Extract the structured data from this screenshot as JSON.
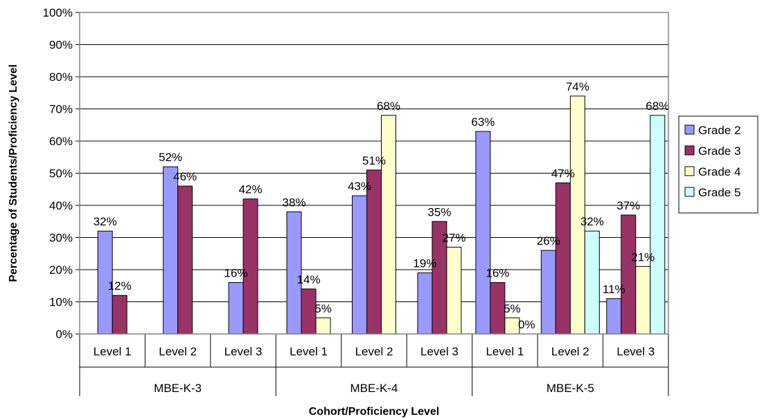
{
  "chart_data": {
    "type": "bar",
    "xlabel": "Cohort/Proficiency Level",
    "ylabel": "Percentage of Students/Proficiency Level",
    "ylim": [
      0,
      100
    ],
    "yticks": [
      "0%",
      "10%",
      "20%",
      "30%",
      "40%",
      "50%",
      "60%",
      "70%",
      "80%",
      "90%",
      "100%"
    ],
    "grid": true,
    "legend_position": "right",
    "groups": [
      {
        "cohort": "MBE-K-3",
        "levels": [
          "Level 1",
          "Level 2",
          "Level 3"
        ],
        "series": [
          {
            "name": "Grade 2",
            "values": [
              32,
              52,
              16
            ],
            "labels": [
              "32%",
              "52%",
              "16%"
            ]
          },
          {
            "name": "Grade 3",
            "values": [
              12,
              46,
              42
            ],
            "labels": [
              "12%",
              "46%",
              "42%"
            ]
          }
        ]
      },
      {
        "cohort": "MBE-K-4",
        "levels": [
          "Level 1",
          "Level 2",
          "Level 3"
        ],
        "series": [
          {
            "name": "Grade 2",
            "values": [
              38,
              43,
              19
            ],
            "labels": [
              "38%",
              "43%",
              "19%"
            ]
          },
          {
            "name": "Grade 3",
            "values": [
              14,
              51,
              35
            ],
            "labels": [
              "14%",
              "51%",
              "35%"
            ]
          },
          {
            "name": "Grade 4",
            "values": [
              5,
              68,
              27
            ],
            "labels": [
              "5%",
              "68%",
              "27%"
            ]
          }
        ]
      },
      {
        "cohort": "MBE-K-5",
        "levels": [
          "Level 1",
          "Level 2",
          "Level 3"
        ],
        "series": [
          {
            "name": "Grade 2",
            "values": [
              63,
              26,
              11
            ],
            "labels": [
              "63%",
              "26%",
              "11%"
            ]
          },
          {
            "name": "Grade 3",
            "values": [
              16,
              47,
              37
            ],
            "labels": [
              "16%",
              "47%",
              "37%"
            ]
          },
          {
            "name": "Grade 4",
            "values": [
              5,
              74,
              21
            ],
            "labels": [
              "5%",
              "74%",
              "21%"
            ]
          },
          {
            "name": "Grade 5",
            "values": [
              0,
              32,
              68
            ],
            "labels": [
              "0%",
              "32%",
              "68%"
            ]
          }
        ]
      }
    ],
    "legend": [
      {
        "name": "Grade 2",
        "color": "#9999ff"
      },
      {
        "name": "Grade 3",
        "color": "#993366"
      },
      {
        "name": "Grade 4",
        "color": "#ffffcc"
      },
      {
        "name": "Grade 5",
        "color": "#ccffff"
      }
    ]
  }
}
